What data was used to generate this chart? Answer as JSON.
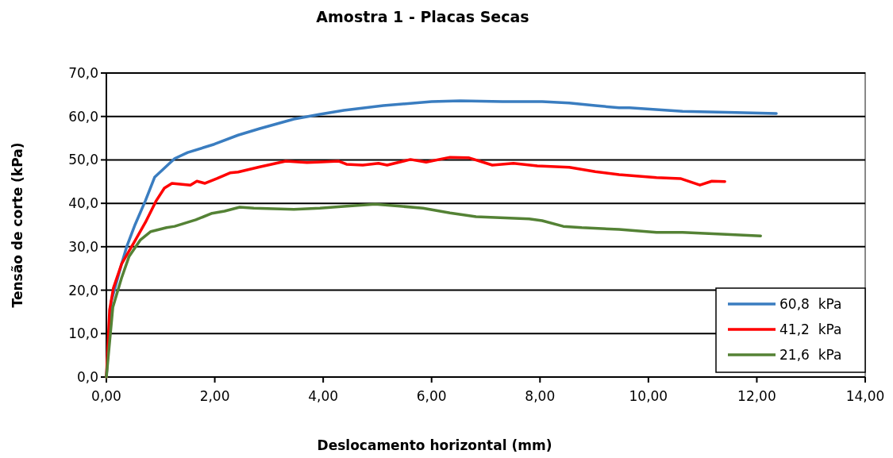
{
  "chart_data": {
    "type": "line",
    "title": "Amostra 1 - Placas Secas",
    "xlabel": "Deslocamento horizontal (mm)",
    "ylabel": "Tensão de corte (kPa)",
    "xlim": [
      0,
      14
    ],
    "ylim": [
      0,
      70
    ],
    "xticks": [
      {
        "value": 0,
        "label": "0,00"
      },
      {
        "value": 2,
        "label": "2,00"
      },
      {
        "value": 4,
        "label": "4,00"
      },
      {
        "value": 6,
        "label": "6,00"
      },
      {
        "value": 8,
        "label": "8,00"
      },
      {
        "value": 10,
        "label": "10,00"
      },
      {
        "value": 12,
        "label": "12,00"
      },
      {
        "value": 14,
        "label": "14,00"
      }
    ],
    "yticks": [
      {
        "value": 0,
        "label": "0,0"
      },
      {
        "value": 10,
        "label": "10,0"
      },
      {
        "value": 20,
        "label": "20,0"
      },
      {
        "value": 30,
        "label": "30,0"
      },
      {
        "value": 40,
        "label": "40,0"
      },
      {
        "value": 50,
        "label": "50,0"
      },
      {
        "value": 60,
        "label": "60,0"
      },
      {
        "value": 70,
        "label": "70,0"
      }
    ],
    "grid": "y",
    "legend": "bottom right",
    "marker": "none",
    "line_style": "solid",
    "series": [
      {
        "name": "60,8  kPa",
        "color": "#3a7dc0",
        "x": [
          0,
          0.09,
          0.28,
          0.38,
          0.53,
          0.72,
          0.89,
          1.26,
          1.5,
          1.99,
          2.43,
          2.83,
          3.46,
          3.94,
          4.38,
          5.11,
          6.0,
          6.53,
          7.31,
          8.04,
          8.54,
          9.02,
          9.46,
          9.65,
          10.63,
          11.61,
          12.36
        ],
        "values": [
          0,
          17.4,
          26,
          30.2,
          35.1,
          40.6,
          46,
          50.3,
          51.7,
          53.6,
          55.7,
          57.2,
          59.4,
          60.5,
          61.4,
          62.5,
          63.4,
          63.6,
          63.4,
          63.4,
          63.1,
          62.5,
          62,
          62,
          61.2,
          60.9,
          60.7
        ]
      },
      {
        "name": "41,2  kPa",
        "color": "#ff0000",
        "x": [
          0,
          0.06,
          0.13,
          0.28,
          0.53,
          0.72,
          0.92,
          1.07,
          1.21,
          1.55,
          1.67,
          1.82,
          2.04,
          2.28,
          2.43,
          2.83,
          3.31,
          3.7,
          3.9,
          4.29,
          4.43,
          4.73,
          5.02,
          5.18,
          5.61,
          5.9,
          6.34,
          6.68,
          7.12,
          7.51,
          7.95,
          8.54,
          9.02,
          9.46,
          10.15,
          10.59,
          10.95,
          11.17,
          11.41
        ],
        "values": [
          0,
          15.5,
          20.5,
          26,
          31.4,
          35.6,
          40.6,
          43.5,
          44.6,
          44.2,
          45.1,
          44.6,
          45.7,
          47,
          47.2,
          48.4,
          49.7,
          49.4,
          49.5,
          49.7,
          49,
          48.8,
          49.2,
          48.8,
          50.1,
          49.5,
          50.6,
          50.5,
          48.8,
          49.2,
          48.6,
          48.3,
          47.3,
          46.6,
          45.9,
          45.7,
          44.2,
          45.1,
          45
        ]
      },
      {
        "name": "21,6  kPa",
        "color": "#548235",
        "x": [
          0,
          0.12,
          0.28,
          0.42,
          0.63,
          0.82,
          1.11,
          1.26,
          1.65,
          1.95,
          2.18,
          2.46,
          2.72,
          3.46,
          3.94,
          4.38,
          4.96,
          5.84,
          6.34,
          6.82,
          7.8,
          8.04,
          8.43,
          8.77,
          9.46,
          10.15,
          10.63,
          11.36,
          12.07
        ],
        "values": [
          0,
          16.1,
          22.8,
          27.8,
          31.6,
          33.5,
          34.4,
          34.7,
          36.2,
          37.7,
          38.2,
          39.1,
          38.9,
          38.6,
          38.9,
          39.3,
          39.8,
          38.9,
          37.8,
          36.9,
          36.4,
          36,
          34.7,
          34.4,
          34,
          33.3,
          33.3,
          32.9,
          32.5
        ]
      }
    ]
  }
}
